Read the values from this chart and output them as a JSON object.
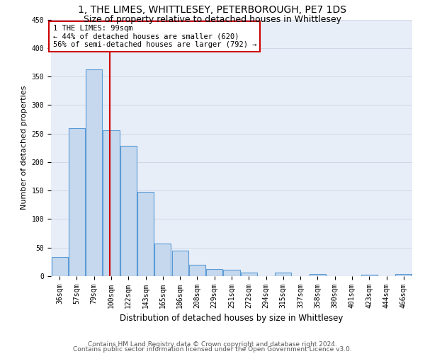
{
  "title": "1, THE LIMES, WHITTLESEY, PETERBOROUGH, PE7 1DS",
  "subtitle": "Size of property relative to detached houses in Whittlesey",
  "xlabel": "Distribution of detached houses by size in Whittlesey",
  "ylabel": "Number of detached properties",
  "bar_color": "#c5d8ed",
  "bar_edge_color": "#5b9bd5",
  "categories": [
    "36sqm",
    "57sqm",
    "79sqm",
    "100sqm",
    "122sqm",
    "143sqm",
    "165sqm",
    "186sqm",
    "208sqm",
    "229sqm",
    "251sqm",
    "272sqm",
    "294sqm",
    "315sqm",
    "337sqm",
    "358sqm",
    "380sqm",
    "401sqm",
    "423sqm",
    "444sqm",
    "466sqm"
  ],
  "values": [
    33,
    260,
    363,
    256,
    228,
    148,
    57,
    45,
    20,
    12,
    11,
    6,
    0,
    6,
    0,
    4,
    0,
    0,
    3,
    0,
    4
  ],
  "vline_x": 3.5,
  "annotation_title": "1 THE LIMES: 99sqm",
  "annotation_line1": "← 44% of detached houses are smaller (620)",
  "annotation_line2": "56% of semi-detached houses are larger (792) →",
  "vline_color": "#cc0000",
  "annotation_box_color": "#ffffff",
  "annotation_box_edge": "#cc0000",
  "ylim": [
    0,
    450
  ],
  "yticks": [
    0,
    50,
    100,
    150,
    200,
    250,
    300,
    350,
    400,
    450
  ],
  "grid_color": "#d0d8e8",
  "background_color": "#e8eef8",
  "footer1": "Contains HM Land Registry data © Crown copyright and database right 2024.",
  "footer2": "Contains public sector information licensed under the Open Government Licence v3.0.",
  "title_fontsize": 10,
  "subtitle_fontsize": 9,
  "xlabel_fontsize": 8.5,
  "ylabel_fontsize": 8,
  "tick_fontsize": 7,
  "annotation_fontsize": 7.5,
  "footer_fontsize": 6.5
}
